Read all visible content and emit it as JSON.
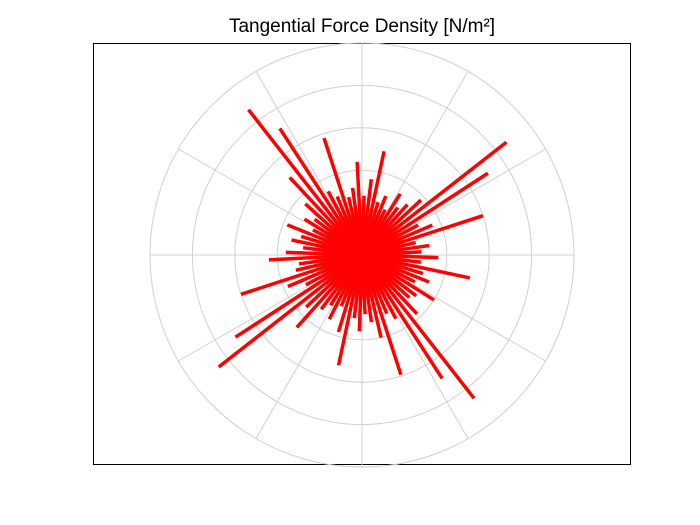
{
  "chart_data": {
    "type": "polar-stem",
    "title": "Tangential Force Density [N/m²]",
    "theta": [
      3,
      8,
      13,
      18,
      23,
      28,
      33,
      38,
      43,
      48,
      53,
      58,
      63,
      68,
      73,
      78,
      83,
      88,
      93,
      98,
      103,
      108,
      113,
      118,
      123,
      128,
      133,
      138,
      143,
      148,
      153,
      158,
      163,
      168,
      173,
      178,
      183,
      188,
      193,
      198,
      203,
      208,
      213,
      218,
      223,
      228,
      233,
      238,
      243,
      248,
      253,
      258,
      263,
      268,
      273,
      278,
      283,
      288,
      293,
      298,
      303,
      308,
      313,
      318,
      323,
      328,
      333,
      338,
      343,
      348,
      353,
      358
    ],
    "r": [
      1.4,
      1.6,
      1.3,
      3.0,
      1.8,
      1.5,
      3.54,
      4.32,
      1.9,
      1.6,
      1.4,
      1.7,
      1.2,
      1.5,
      1.3,
      2.5,
      1.8,
      1.4,
      2.2,
      1.6,
      1.4,
      2.9,
      1.5,
      1.7,
      3.56,
      4.35,
      2.5,
      1.8,
      1.4,
      1.6,
      1.3,
      1.9,
      1.5,
      1.7,
      1.4,
      1.8,
      2.2,
      1.5,
      1.6,
      3.0,
      1.9,
      1.5,
      3.56,
      4.29,
      1.8,
      2.3,
      1.6,
      1.4,
      1.7,
      1.3,
      1.9,
      2.66,
      1.5,
      1.8,
      1.4,
      1.6,
      2.0,
      2.97,
      1.5,
      1.7,
      3.47,
      4.29,
      1.9,
      1.5,
      1.6,
      2.0,
      1.4,
      1.7,
      1.5,
      2.6,
      1.4,
      1.8
    ],
    "color": "#ff0000",
    "rlim": [
      0,
      5
    ],
    "rticks": [
      1,
      2,
      3,
      4,
      5
    ],
    "thetaticks": [
      0,
      30,
      60,
      90,
      120,
      150,
      180,
      210,
      240,
      270,
      300,
      330
    ],
    "grid": true
  }
}
